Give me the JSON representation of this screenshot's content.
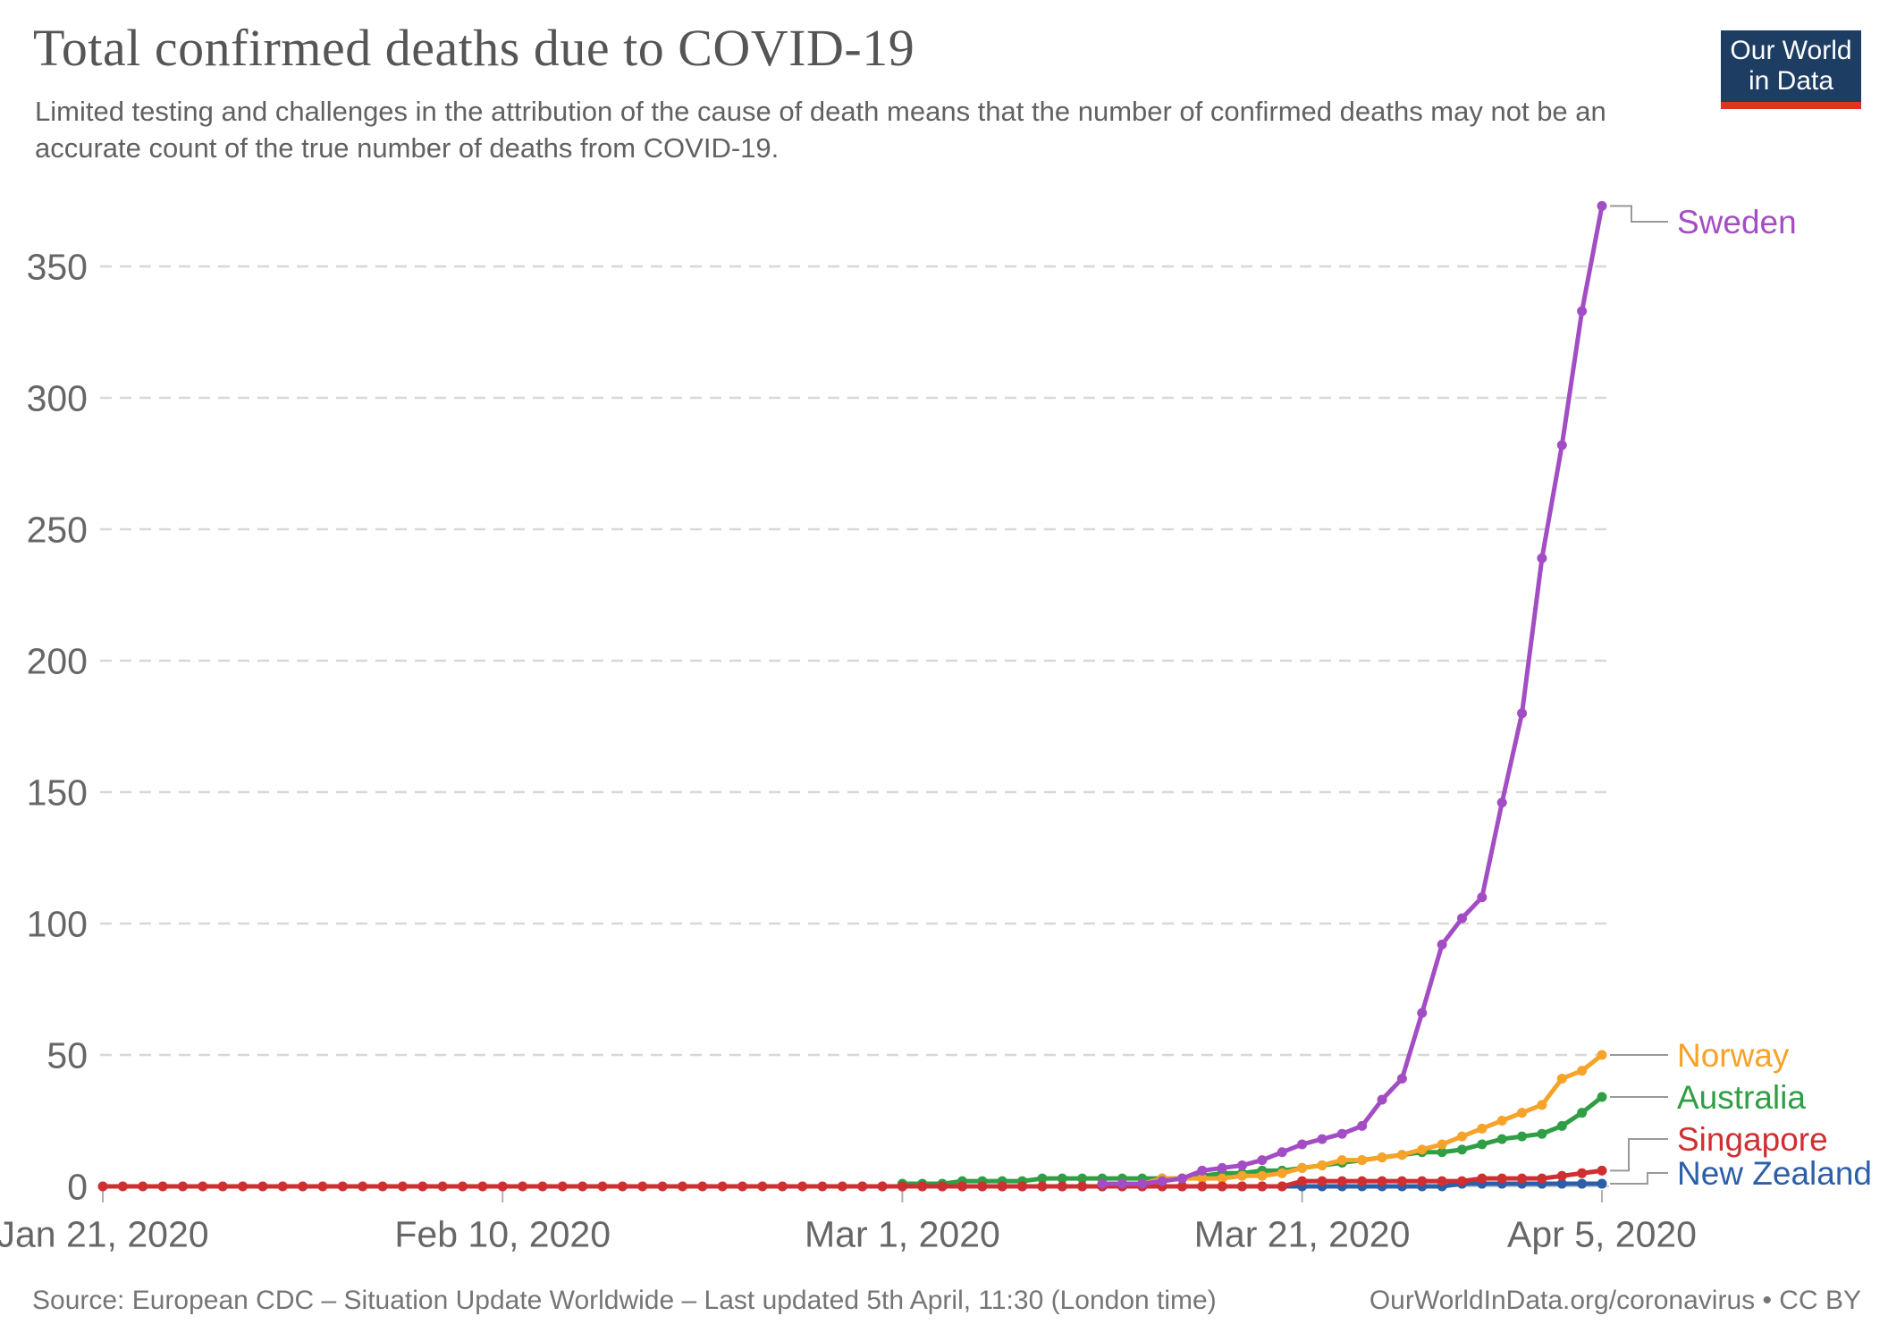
{
  "header": {
    "logo": {
      "line1": "Our World",
      "line2": "in Data",
      "bg_color": "#1d3d63",
      "accent_color": "#dd3424"
    }
  },
  "footer": {
    "source": "Source: European CDC – Situation Update Worldwide – Last updated 5th April, 11:30 (London time)",
    "credit": "OurWorldInData.org/coronavirus • CC BY"
  },
  "chart_data": {
    "type": "line",
    "title": "Total confirmed deaths due to COVID-19",
    "subtitle": "Limited testing and challenges in the attribution of the cause of death means that the number of confirmed deaths may not be an accurate count of the true number of deaths from COVID-19.",
    "xlabel": "",
    "ylabel": "",
    "x_start": "2020-01-21",
    "x_end": "2020-04-05",
    "ylim": [
      0,
      380
    ],
    "y_ticks": [
      0,
      50,
      100,
      150,
      200,
      250,
      300,
      350
    ],
    "x_ticks": [
      {
        "date": "2020-01-21",
        "label": "Jan 21, 2020"
      },
      {
        "date": "2020-02-10",
        "label": "Feb 10, 2020"
      },
      {
        "date": "2020-03-01",
        "label": "Mar 1, 2020"
      },
      {
        "date": "2020-03-21",
        "label": "Mar 21, 2020"
      },
      {
        "date": "2020-04-05",
        "label": "Apr 5, 2020"
      }
    ],
    "grid": true,
    "grid_color": "#d8d8d8",
    "axis_text_color": "#666666",
    "connector_color": "#999999",
    "legend_position": "right",
    "legend": [
      "Sweden",
      "Norway",
      "Australia",
      "Singapore",
      "New Zealand"
    ],
    "series": [
      {
        "name": "Sweden",
        "color": "#a34dc4",
        "points": [
          [
            "2020-03-11",
            1
          ],
          [
            "2020-03-12",
            1
          ],
          [
            "2020-03-13",
            1
          ],
          [
            "2020-03-14",
            2
          ],
          [
            "2020-03-15",
            3
          ],
          [
            "2020-03-16",
            6
          ],
          [
            "2020-03-17",
            7
          ],
          [
            "2020-03-18",
            8
          ],
          [
            "2020-03-19",
            10
          ],
          [
            "2020-03-20",
            13
          ],
          [
            "2020-03-21",
            16
          ],
          [
            "2020-03-22",
            18
          ],
          [
            "2020-03-23",
            20
          ],
          [
            "2020-03-24",
            23
          ],
          [
            "2020-03-25",
            33
          ],
          [
            "2020-03-26",
            41
          ],
          [
            "2020-03-27",
            66
          ],
          [
            "2020-03-28",
            92
          ],
          [
            "2020-03-29",
            102
          ],
          [
            "2020-03-30",
            110
          ],
          [
            "2020-03-31",
            146
          ],
          [
            "2020-04-01",
            180
          ],
          [
            "2020-04-02",
            239
          ],
          [
            "2020-04-03",
            282
          ],
          [
            "2020-04-04",
            333
          ],
          [
            "2020-04-05",
            373
          ]
        ]
      },
      {
        "name": "Norway",
        "color": "#f7a228",
        "points": [
          [
            "2020-03-12",
            1
          ],
          [
            "2020-03-13",
            1
          ],
          [
            "2020-03-14",
            3
          ],
          [
            "2020-03-15",
            3
          ],
          [
            "2020-03-16",
            3
          ],
          [
            "2020-03-17",
            3
          ],
          [
            "2020-03-18",
            4
          ],
          [
            "2020-03-19",
            4
          ],
          [
            "2020-03-20",
            5
          ],
          [
            "2020-03-21",
            7
          ],
          [
            "2020-03-22",
            8
          ],
          [
            "2020-03-23",
            10
          ],
          [
            "2020-03-24",
            10
          ],
          [
            "2020-03-25",
            11
          ],
          [
            "2020-03-26",
            12
          ],
          [
            "2020-03-27",
            14
          ],
          [
            "2020-03-28",
            16
          ],
          [
            "2020-03-29",
            19
          ],
          [
            "2020-03-30",
            22
          ],
          [
            "2020-03-31",
            25
          ],
          [
            "2020-04-01",
            28
          ],
          [
            "2020-04-02",
            31
          ],
          [
            "2020-04-03",
            41
          ],
          [
            "2020-04-04",
            44
          ],
          [
            "2020-04-05",
            50
          ]
        ]
      },
      {
        "name": "Australia",
        "color": "#2f9e44",
        "points": [
          [
            "2020-03-01",
            1
          ],
          [
            "2020-03-02",
            1
          ],
          [
            "2020-03-03",
            1
          ],
          [
            "2020-03-04",
            2
          ],
          [
            "2020-03-05",
            2
          ],
          [
            "2020-03-06",
            2
          ],
          [
            "2020-03-07",
            2
          ],
          [
            "2020-03-08",
            3
          ],
          [
            "2020-03-09",
            3
          ],
          [
            "2020-03-10",
            3
          ],
          [
            "2020-03-11",
            3
          ],
          [
            "2020-03-12",
            3
          ],
          [
            "2020-03-13",
            3
          ],
          [
            "2020-03-14",
            3
          ],
          [
            "2020-03-15",
            3
          ],
          [
            "2020-03-16",
            4
          ],
          [
            "2020-03-17",
            5
          ],
          [
            "2020-03-18",
            5
          ],
          [
            "2020-03-19",
            6
          ],
          [
            "2020-03-20",
            6
          ],
          [
            "2020-03-21",
            7
          ],
          [
            "2020-03-22",
            8
          ],
          [
            "2020-03-23",
            9
          ],
          [
            "2020-03-24",
            10
          ],
          [
            "2020-03-25",
            11
          ],
          [
            "2020-03-26",
            12
          ],
          [
            "2020-03-27",
            13
          ],
          [
            "2020-03-28",
            13
          ],
          [
            "2020-03-29",
            14
          ],
          [
            "2020-03-30",
            16
          ],
          [
            "2020-03-31",
            18
          ],
          [
            "2020-04-01",
            19
          ],
          [
            "2020-04-02",
            20
          ],
          [
            "2020-04-03",
            23
          ],
          [
            "2020-04-04",
            28
          ],
          [
            "2020-04-05",
            34
          ]
        ]
      },
      {
        "name": "Singapore",
        "color": "#d02e31",
        "points": [
          {
            "from": "2020-01-21",
            "to": "2020-03-20",
            "value": 0
          },
          {
            "from": "2020-03-21",
            "to": "2020-03-29",
            "value": 2
          },
          [
            "2020-03-30",
            3
          ],
          [
            "2020-03-31",
            3
          ],
          [
            "2020-04-01",
            3
          ],
          [
            "2020-04-02",
            3
          ],
          [
            "2020-04-03",
            4
          ],
          [
            "2020-04-04",
            5
          ],
          [
            "2020-04-05",
            6
          ]
        ]
      },
      {
        "name": "New Zealand",
        "color": "#2c5fa8",
        "points": [
          {
            "from": "2020-02-28",
            "to": "2020-03-28",
            "value": 0
          },
          {
            "from": "2020-03-29",
            "to": "2020-04-05",
            "value": 1
          }
        ]
      }
    ]
  }
}
